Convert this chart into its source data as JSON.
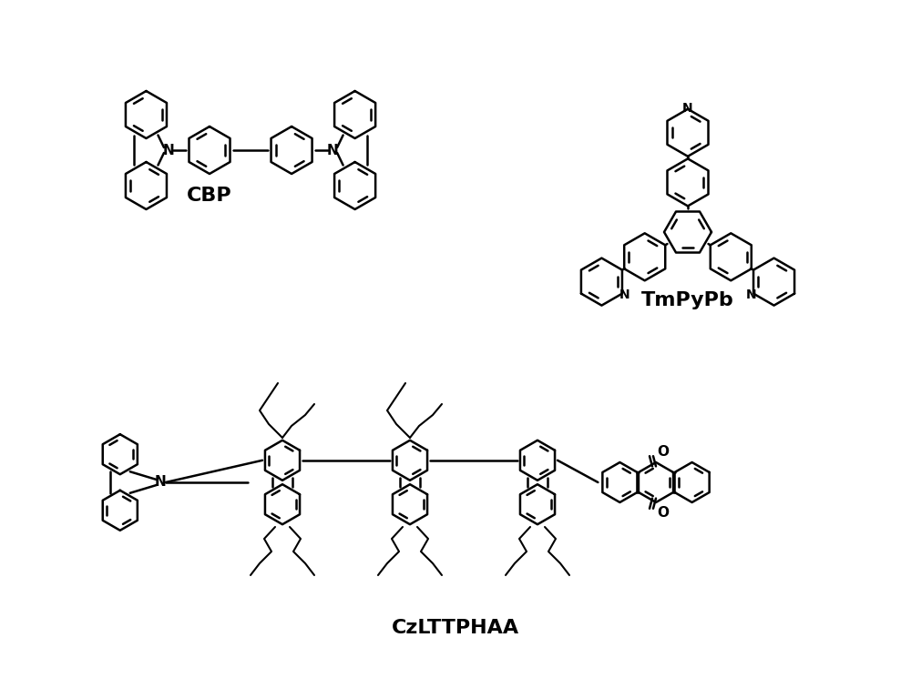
{
  "title": "",
  "background_color": "#ffffff",
  "label_cbp": "CBP",
  "label_tmpypb": "TmPyPb",
  "label_czlttphaa": "CzLTTPHAA",
  "label_fontsize": 16,
  "label_fontweight": "bold",
  "fig_width": 10.0,
  "fig_height": 7.45,
  "line_color": "#000000",
  "line_width": 1.8
}
